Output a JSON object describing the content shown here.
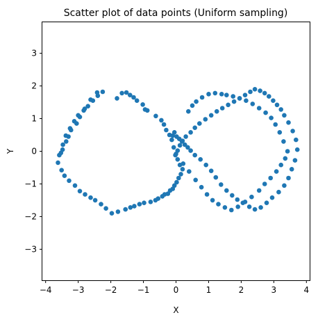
{
  "chart_data": {
    "type": "scatter",
    "title": "Scatter plot of data points (Uniform sampling)",
    "xlabel": "X",
    "ylabel": "Y",
    "xlim": [
      -4.1,
      4.1
    ],
    "ylim": [
      -3.95,
      3.95
    ],
    "xticks": [
      -4,
      -3,
      -2,
      -1,
      0,
      1,
      2,
      3,
      4
    ],
    "yticks": [
      -3,
      -2,
      -1,
      0,
      1,
      2,
      3
    ],
    "grid": false,
    "color": "#1f77b4",
    "series": [
      {
        "x": [
          -1.81,
          -1.66,
          -1.52,
          -1.41,
          -1.3,
          -1.2,
          -1.02,
          -0.95,
          -0.88,
          -0.62,
          -0.45,
          -0.37,
          -0.3,
          -0.2,
          -0.13,
          -0.07,
          0.0,
          0.05,
          0.12,
          0.2,
          0.15,
          0.08,
          0.02,
          -0.05,
          -0.1,
          -0.18,
          -0.25,
          -0.35,
          -0.42,
          -0.55,
          -0.63,
          -0.78,
          -0.98,
          -1.12,
          -1.28,
          -1.4,
          -1.55,
          -1.78,
          -1.97,
          -2.15,
          -2.3,
          -2.48,
          -2.62,
          -2.79,
          -2.95,
          -3.1,
          -3.28,
          -3.42,
          -3.51,
          -3.62,
          -3.58,
          -3.48,
          -3.37,
          -3.3,
          -3.22,
          -3.05,
          -2.95,
          -2.83,
          -2.7,
          -2.55,
          -2.4,
          -2.25,
          -2.42,
          -2.62,
          -2.8,
          -3.0,
          -3.12,
          -3.25,
          -3.38,
          -3.47,
          -3.53,
          -0.05,
          -0.1,
          0.02,
          0.1,
          0.18,
          0.27,
          0.36,
          0.45,
          0.58,
          0.75,
          0.92,
          1.08,
          1.22,
          1.38,
          1.55,
          1.72,
          1.88,
          2.05,
          2.25,
          2.42,
          2.6,
          2.78,
          2.95,
          3.15,
          3.32,
          3.45,
          3.55,
          3.65,
          3.72,
          3.68,
          3.58,
          3.45,
          3.32,
          3.22,
          3.1,
          2.98,
          2.85,
          2.72,
          2.58,
          2.42,
          2.28,
          2.12,
          1.95,
          1.78,
          1.6,
          1.42,
          1.25,
          1.08,
          0.9,
          0.72,
          0.58,
          0.45,
          0.3,
          0.2,
          0.12,
          0.05,
          -0.02,
          0.22,
          0.4,
          0.6,
          0.78,
          0.95,
          1.12,
          1.3,
          1.5,
          1.7,
          1.9,
          2.12,
          2.32,
          2.55,
          2.72,
          2.9,
          3.08,
          3.22,
          3.35,
          3.42,
          3.3,
          3.18,
          3.05,
          2.92,
          2.75,
          2.55,
          2.35,
          2.15,
          1.95,
          1.75,
          1.55,
          1.4,
          1.2,
          1.0,
          0.8,
          0.62,
          0.5,
          0.38
        ],
        "y": [
          1.62,
          1.78,
          1.8,
          1.72,
          1.65,
          1.55,
          1.43,
          1.28,
          1.25,
          1.08,
          0.95,
          0.82,
          0.65,
          0.5,
          0.35,
          0.12,
          -0.08,
          -0.25,
          -0.42,
          -0.55,
          -0.7,
          -0.82,
          -0.95,
          -1.05,
          -1.15,
          -1.2,
          -1.3,
          -1.32,
          -1.38,
          -1.45,
          -1.5,
          -1.55,
          -1.58,
          -1.62,
          -1.68,
          -1.72,
          -1.78,
          -1.85,
          -1.9,
          -1.75,
          -1.62,
          -1.5,
          -1.42,
          -1.32,
          -1.22,
          -1.05,
          -0.9,
          -0.75,
          -0.58,
          -0.35,
          -0.12,
          0.05,
          0.3,
          0.45,
          0.65,
          0.85,
          1.05,
          1.25,
          1.38,
          1.55,
          1.7,
          1.82,
          1.8,
          1.58,
          1.3,
          1.1,
          0.92,
          0.7,
          0.48,
          0.2,
          -0.05,
          0.58,
          0.48,
          0.45,
          0.38,
          0.3,
          0.2,
          0.12,
          0.02,
          -0.12,
          -0.25,
          -0.42,
          -0.6,
          -0.8,
          -1.02,
          -1.2,
          -1.35,
          -1.48,
          -1.58,
          -1.7,
          -1.78,
          -1.72,
          -1.58,
          -1.42,
          -1.25,
          -1.05,
          -0.82,
          -0.55,
          -0.28,
          0.05,
          0.35,
          0.62,
          0.88,
          1.1,
          1.28,
          1.42,
          1.55,
          1.68,
          1.78,
          1.85,
          1.9,
          1.82,
          1.72,
          1.62,
          1.52,
          1.42,
          1.32,
          1.22,
          1.1,
          0.98,
          0.85,
          0.72,
          0.58,
          0.45,
          0.32,
          0.18,
          0.02,
          -0.12,
          -0.38,
          -0.62,
          -0.88,
          -1.1,
          -1.32,
          -1.5,
          -1.62,
          -1.72,
          -1.8,
          -1.7,
          -1.55,
          -1.4,
          -1.2,
          -1.0,
          -0.82,
          -0.62,
          -0.42,
          -0.22,
          0.0,
          0.3,
          0.58,
          0.82,
          1.02,
          1.18,
          1.32,
          1.45,
          1.55,
          1.62,
          1.68,
          1.72,
          1.75,
          1.78,
          1.75,
          1.65,
          1.52,
          1.4,
          1.22
        ]
      }
    ]
  }
}
